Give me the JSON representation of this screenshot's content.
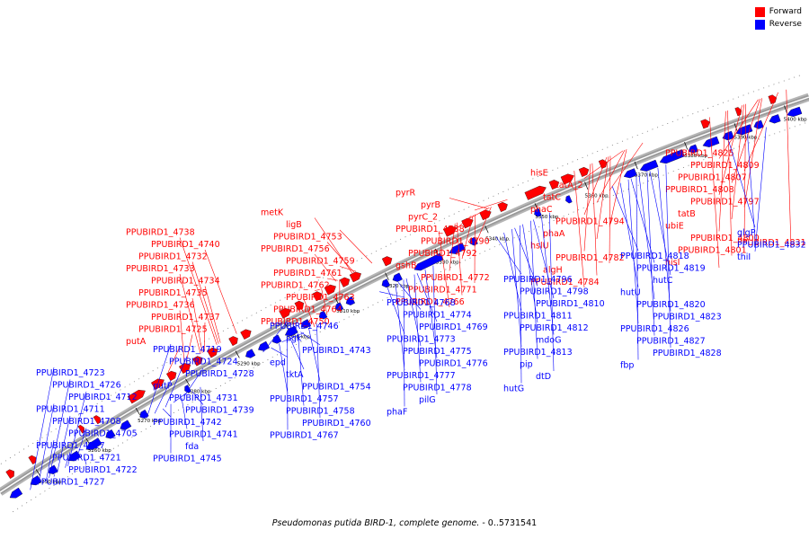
{
  "title": {
    "organism": "Pseudomonas putida BIRD-1, complete genome.",
    "range": " - 0..5731541"
  },
  "legend": [
    {
      "label": "Forward",
      "color": "#ff0000"
    },
    {
      "label": "Reverse",
      "color": "#0000ff"
    }
  ],
  "colors": {
    "forward": "#ff0000",
    "reverse": "#0000ff",
    "backbone": "#9a9a9a"
  },
  "ticks": [
    "5250 kbp",
    "5260 kbp",
    "5270 kbp",
    "5280 kbp",
    "5290 kbp",
    "5300 kbp",
    "5310 kbp",
    "5320 kbp",
    "5330 kbp",
    "5340 kbp",
    "5350 kbp",
    "5360 kbp",
    "5370 kbp",
    "5380 kbp",
    "5390 kbp",
    "5400 kbp"
  ],
  "forward_labels": [
    "putA",
    "PPUBIRD1_4725",
    "PPUBIRD1_4737",
    "PPUBIRD1_4736",
    "PPUBIRD1_4735",
    "PPUBIRD1_4734",
    "PPUBIRD1_4733",
    "PPUBIRD1_4732",
    "PPUBIRD1_4740",
    "PPUBIRD1_4738",
    "PPUBIRD1_4750",
    "PPUBIRD1_4764",
    "PPUBIRD1_4763",
    "PPUBIRD1_4762",
    "PPUBIRD1_4761",
    "PPUBIRD1_4759",
    "PPUBIRD1_4756",
    "PPUBIRD1_4753",
    "ligB",
    "metK",
    "PPUBIRD1_4766",
    "PPUBIRD1_4771",
    "PPUBIRD1_4772",
    "gshB",
    "PPUBIRD1_4792",
    "PPUBIRD1_4790",
    "PPUBIRD1_4788",
    "pyrC_2",
    "pyrB",
    "pyrR",
    "PPUBIRD1_4784",
    "algH",
    "PPUBIRD1_4782",
    "hslU",
    "phaA",
    "PPUBIRD1_4794",
    "phaC",
    "tatC",
    "tatA_2",
    "hisE",
    "hisI",
    "PPUBIRD1_4801",
    "PPUBIRD1_4800",
    "ubiE",
    "tatB",
    "PPUBIRD1_4797",
    "PPUBIRD1_4808",
    "PPUBIRD1_4807",
    "PPUBIRD1_4809",
    "PPUBIRD1_4825",
    "PPUBIRD1_4831"
  ],
  "reverse_labels": [
    "PPUBIRD1_4723",
    "PPUBIRD1_4726",
    "PPUBIRD1_4712",
    "PPUBIRD1_4711",
    "PPUBIRD1_4708",
    "PPUBIRD1_4705",
    "PPUBIRD1_4717",
    "PPUBIRD1_4721",
    "PPUBIRD1_4722",
    "PPUBIRD1_4727",
    "PPUBIRD1_4719",
    "PPUBIRD1_4724",
    "PPUBIRD1_4728",
    "putP",
    "PPUBIRD1_4731",
    "PPUBIRD1_4739",
    "PPUBIRD1_4742",
    "PPUBIRD1_4741",
    "fda",
    "PPUBIRD1_4745",
    "PPUBIRD1_4746",
    "pgk",
    "PPUBIRD1_4743",
    "epd",
    "tktA",
    "PPUBIRD1_4754",
    "PPUBIRD1_4757",
    "PPUBIRD1_4758",
    "PPUBIRD1_4760",
    "PPUBIRD1_4767",
    "PPUBIRD1_4768",
    "PPUBIRD1_4774",
    "PPUBIRD1_4769",
    "PPUBIRD1_4773",
    "PPUBIRD1_4775",
    "PPUBIRD1_4776",
    "PPUBIRD1_4777",
    "PPUBIRD1_4778",
    "pilG",
    "phaF",
    "PPUBIRD1_4796",
    "PPUBIRD1_4798",
    "PPUBIRD1_4810",
    "PPUBIRD1_4811",
    "PPUBIRD1_4812",
    "mdoG",
    "PPUBIRD1_4813",
    "pip",
    "dtD",
    "hutG",
    "PPUBIRD1_4818",
    "PPUBIRD1_4819",
    "hutC",
    "hutU",
    "PPUBIRD1_4820",
    "PPUBIRD1_4823",
    "PPUBIRD1_4826",
    "PPUBIRD1_4827",
    "PPUBIRD1_4828",
    "fbp",
    "glgP",
    "PPUBIRD1_4832",
    "thiI"
  ]
}
